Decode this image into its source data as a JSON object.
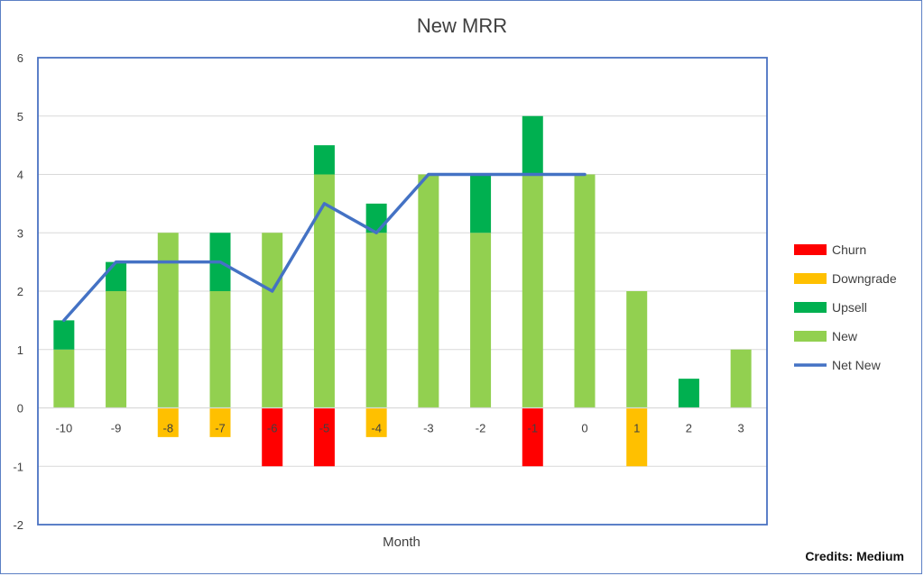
{
  "credits": "Credits: Medium",
  "chart_data": {
    "type": "bar",
    "title": "New MRR",
    "xlabel": "Month",
    "ylabel": "",
    "ylim": [
      -2,
      6
    ],
    "yticks": [
      -2,
      -1,
      0,
      1,
      2,
      3,
      4,
      5,
      6
    ],
    "categories": [
      "-10",
      "-9",
      "-8",
      "-7",
      "-6",
      "-5",
      "-4",
      "-3",
      "-2",
      "-1",
      "0",
      "1",
      "2",
      "3"
    ],
    "stacked": true,
    "grid": true,
    "legend_position": "right",
    "series": [
      {
        "name": "Churn",
        "kind": "bar",
        "color": "#ff0000",
        "values": [
          0,
          0,
          0,
          0,
          -1,
          -1,
          0,
          0,
          0,
          -1,
          0,
          0,
          0,
          0
        ]
      },
      {
        "name": "Downgrade",
        "kind": "bar",
        "color": "#ffc000",
        "values": [
          0,
          0,
          -0.5,
          -0.5,
          0,
          0,
          -0.5,
          0,
          0,
          0,
          0,
          -1,
          0,
          0
        ]
      },
      {
        "name": "Upsell",
        "kind": "bar",
        "color": "#00b050",
        "values": [
          0.5,
          0.5,
          0,
          1,
          0,
          0.5,
          0.5,
          0,
          1,
          1,
          0,
          0,
          0.5,
          0
        ]
      },
      {
        "name": "New",
        "kind": "bar",
        "color": "#92d050",
        "values": [
          1,
          2,
          3,
          2,
          3,
          4,
          3,
          4,
          3,
          4,
          4,
          2,
          0,
          1
        ]
      },
      {
        "name": "Net New",
        "kind": "line",
        "color": "#4472c4",
        "values": [
          1.5,
          2.5,
          2.5,
          2.5,
          2,
          3.5,
          3,
          4,
          4,
          4,
          4,
          null,
          null,
          null
        ]
      }
    ]
  }
}
